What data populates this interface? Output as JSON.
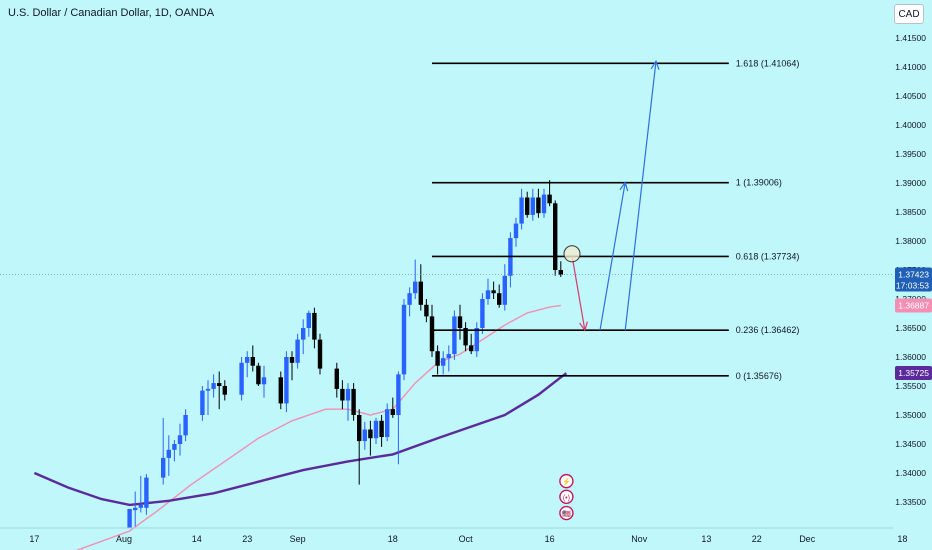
{
  "header": {
    "symbol_title": "U.S. Dollar / Canadian Dollar, 1D, OANDA",
    "currency_button": "CAD"
  },
  "colors": {
    "background": "#bff7fb",
    "up_candle": "#2962ff",
    "down_candle": "#000000",
    "ma_fast": "#f48fb1",
    "ma_slow": "#5b2a9b",
    "arrow_up": "#2f6fe0",
    "arrow_down": "#d63a6a"
  },
  "price_badges": {
    "last_price": "1.37423",
    "countdown": "17:03:53",
    "ma_fast_value": "1.36887",
    "ma_slow_value": "1.35725"
  },
  "chart_data": {
    "type": "candlestick",
    "title": "U.S. Dollar / Canadian Dollar, 1D, OANDA",
    "y_axis": {
      "ticks": [
        "1.41500",
        "1.41000",
        "1.40500",
        "1.40000",
        "1.39500",
        "1.39000",
        "1.38500",
        "1.38000",
        "1.37500",
        "1.37000",
        "1.36500",
        "1.36000",
        "1.35500",
        "1.35000",
        "1.34500",
        "1.34000",
        "1.33500"
      ],
      "range": [
        1.3305,
        1.4195
      ]
    },
    "x_axis": {
      "ticks": [
        "17",
        "Aug",
        "14",
        "23",
        "Sep",
        "18",
        "Oct",
        "16",
        "Nov",
        "13",
        "22",
        "Dec",
        "18"
      ],
      "tick_days": [
        -16,
        0,
        13,
        22,
        31,
        48,
        61,
        76,
        92,
        104,
        113,
        122,
        139
      ]
    },
    "candles": [
      {
        "d": 1,
        "o": 1.3305,
        "h": 1.3338,
        "l": 1.3305,
        "c": 1.3338
      },
      {
        "d": 2,
        "o": 1.3336,
        "h": 1.3368,
        "l": 1.3308,
        "c": 1.334
      },
      {
        "d": 3,
        "o": 1.334,
        "h": 1.3395,
        "l": 1.3332,
        "c": 1.3345
      },
      {
        "d": 4,
        "o": 1.334,
        "h": 1.3398,
        "l": 1.3328,
        "c": 1.3392
      },
      {
        "d": 7,
        "o": 1.3392,
        "h": 1.3495,
        "l": 1.338,
        "c": 1.3426
      },
      {
        "d": 8,
        "o": 1.3426,
        "h": 1.3465,
        "l": 1.3395,
        "c": 1.344
      },
      {
        "d": 9,
        "o": 1.344,
        "h": 1.3457,
        "l": 1.342,
        "c": 1.345
      },
      {
        "d": 10,
        "o": 1.345,
        "h": 1.3485,
        "l": 1.343,
        "c": 1.3465
      },
      {
        "d": 11,
        "o": 1.3465,
        "h": 1.351,
        "l": 1.3455,
        "c": 1.35
      },
      {
        "d": 14,
        "o": 1.35,
        "h": 1.355,
        "l": 1.349,
        "c": 1.3542
      },
      {
        "d": 15,
        "o": 1.3542,
        "h": 1.356,
        "l": 1.35,
        "c": 1.3545
      },
      {
        "d": 16,
        "o": 1.3545,
        "h": 1.357,
        "l": 1.353,
        "c": 1.3555
      },
      {
        "d": 17,
        "o": 1.3555,
        "h": 1.3575,
        "l": 1.351,
        "c": 1.355
      },
      {
        "d": 18,
        "o": 1.355,
        "h": 1.356,
        "l": 1.3525,
        "c": 1.3535
      },
      {
        "d": 21,
        "o": 1.3535,
        "h": 1.36,
        "l": 1.3525,
        "c": 1.359
      },
      {
        "d": 22,
        "o": 1.359,
        "h": 1.361,
        "l": 1.3565,
        "c": 1.36
      },
      {
        "d": 23,
        "o": 1.36,
        "h": 1.362,
        "l": 1.3575,
        "c": 1.3585
      },
      {
        "d": 24,
        "o": 1.3585,
        "h": 1.359,
        "l": 1.355,
        "c": 1.3553
      },
      {
        "d": 25,
        "o": 1.3553,
        "h": 1.3585,
        "l": 1.353,
        "c": 1.3565
      },
      {
        "d": 28,
        "o": 1.3565,
        "h": 1.3575,
        "l": 1.351,
        "c": 1.352
      },
      {
        "d": 29,
        "o": 1.352,
        "h": 1.361,
        "l": 1.3505,
        "c": 1.36
      },
      {
        "d": 30,
        "o": 1.36,
        "h": 1.361,
        "l": 1.356,
        "c": 1.359
      },
      {
        "d": 31,
        "o": 1.359,
        "h": 1.364,
        "l": 1.358,
        "c": 1.363
      },
      {
        "d": 32,
        "o": 1.363,
        "h": 1.3665,
        "l": 1.3605,
        "c": 1.365
      },
      {
        "d": 33,
        "o": 1.365,
        "h": 1.368,
        "l": 1.3635,
        "c": 1.3676
      },
      {
        "d": 34,
        "o": 1.3676,
        "h": 1.3685,
        "l": 1.3615,
        "c": 1.363
      },
      {
        "d": 35,
        "o": 1.363,
        "h": 1.364,
        "l": 1.357,
        "c": 1.358
      },
      {
        "d": 38,
        "o": 1.358,
        "h": 1.359,
        "l": 1.353,
        "c": 1.3545
      },
      {
        "d": 39,
        "o": 1.3545,
        "h": 1.356,
        "l": 1.351,
        "c": 1.3525
      },
      {
        "d": 40,
        "o": 1.3525,
        "h": 1.3555,
        "l": 1.349,
        "c": 1.3545
      },
      {
        "d": 41,
        "o": 1.3545,
        "h": 1.3555,
        "l": 1.349,
        "c": 1.35
      },
      {
        "d": 42,
        "o": 1.35,
        "h": 1.351,
        "l": 1.338,
        "c": 1.3455
      },
      {
        "d": 43,
        "o": 1.3455,
        "h": 1.3488,
        "l": 1.344,
        "c": 1.3475
      },
      {
        "d": 44,
        "o": 1.3475,
        "h": 1.349,
        "l": 1.343,
        "c": 1.346
      },
      {
        "d": 45,
        "o": 1.346,
        "h": 1.3495,
        "l": 1.345,
        "c": 1.349
      },
      {
        "d": 46,
        "o": 1.349,
        "h": 1.35,
        "l": 1.3445,
        "c": 1.3462
      },
      {
        "d": 47,
        "o": 1.3462,
        "h": 1.352,
        "l": 1.3455,
        "c": 1.351
      },
      {
        "d": 48,
        "o": 1.351,
        "h": 1.353,
        "l": 1.3495,
        "c": 1.35
      },
      {
        "d": 49,
        "o": 1.35,
        "h": 1.3575,
        "l": 1.3415,
        "c": 1.357
      },
      {
        "d": 50,
        "o": 1.357,
        "h": 1.37,
        "l": 1.356,
        "c": 1.369
      },
      {
        "d": 51,
        "o": 1.369,
        "h": 1.372,
        "l": 1.367,
        "c": 1.371
      },
      {
        "d": 52,
        "o": 1.371,
        "h": 1.3768,
        "l": 1.37,
        "c": 1.373
      },
      {
        "d": 53,
        "o": 1.373,
        "h": 1.376,
        "l": 1.368,
        "c": 1.369
      },
      {
        "d": 54,
        "o": 1.369,
        "h": 1.37,
        "l": 1.366,
        "c": 1.367
      },
      {
        "d": 55,
        "o": 1.367,
        "h": 1.369,
        "l": 1.36,
        "c": 1.361
      },
      {
        "d": 56,
        "o": 1.361,
        "h": 1.362,
        "l": 1.357,
        "c": 1.3585
      },
      {
        "d": 57,
        "o": 1.3585,
        "h": 1.361,
        "l": 1.357,
        "c": 1.3598
      },
      {
        "d": 58,
        "o": 1.3598,
        "h": 1.362,
        "l": 1.3575,
        "c": 1.3605
      },
      {
        "d": 59,
        "o": 1.3605,
        "h": 1.368,
        "l": 1.3595,
        "c": 1.367
      },
      {
        "d": 60,
        "o": 1.367,
        "h": 1.369,
        "l": 1.363,
        "c": 1.365
      },
      {
        "d": 61,
        "o": 1.365,
        "h": 1.366,
        "l": 1.361,
        "c": 1.362
      },
      {
        "d": 62,
        "o": 1.362,
        "h": 1.364,
        "l": 1.3605,
        "c": 1.361
      },
      {
        "d": 63,
        "o": 1.361,
        "h": 1.366,
        "l": 1.36,
        "c": 1.365
      },
      {
        "d": 64,
        "o": 1.365,
        "h": 1.371,
        "l": 1.364,
        "c": 1.37
      },
      {
        "d": 65,
        "o": 1.37,
        "h": 1.3735,
        "l": 1.369,
        "c": 1.3715
      },
      {
        "d": 66,
        "o": 1.3715,
        "h": 1.373,
        "l": 1.37,
        "c": 1.371
      },
      {
        "d": 67,
        "o": 1.371,
        "h": 1.3725,
        "l": 1.3685,
        "c": 1.369
      },
      {
        "d": 68,
        "o": 1.369,
        "h": 1.376,
        "l": 1.368,
        "c": 1.374
      },
      {
        "d": 69,
        "o": 1.374,
        "h": 1.3815,
        "l": 1.372,
        "c": 1.3805
      },
      {
        "d": 70,
        "o": 1.3805,
        "h": 1.384,
        "l": 1.379,
        "c": 1.383
      },
      {
        "d": 71,
        "o": 1.383,
        "h": 1.389,
        "l": 1.382,
        "c": 1.3875
      },
      {
        "d": 72,
        "o": 1.3875,
        "h": 1.3885,
        "l": 1.384,
        "c": 1.3845
      },
      {
        "d": 73,
        "o": 1.3845,
        "h": 1.389,
        "l": 1.3835,
        "c": 1.3875
      },
      {
        "d": 74,
        "o": 1.3875,
        "h": 1.389,
        "l": 1.384,
        "c": 1.3848
      },
      {
        "d": 75,
        "o": 1.3848,
        "h": 1.389,
        "l": 1.384,
        "c": 1.388
      },
      {
        "d": 76,
        "o": 1.388,
        "h": 1.3905,
        "l": 1.386,
        "c": 1.3865
      },
      {
        "d": 77,
        "o": 1.3865,
        "h": 1.387,
        "l": 1.374,
        "c": 1.375
      },
      {
        "d": 78,
        "o": 1.375,
        "h": 1.3765,
        "l": 1.3738,
        "c": 1.3742
      }
    ],
    "ma_fast": [
      [
        -16,
        1.324
      ],
      [
        1,
        1.33
      ],
      [
        6,
        1.3335
      ],
      [
        12,
        1.338
      ],
      [
        18,
        1.342
      ],
      [
        24,
        1.346
      ],
      [
        30,
        1.349
      ],
      [
        36,
        1.351
      ],
      [
        40,
        1.351
      ],
      [
        44,
        1.35
      ],
      [
        48,
        1.351
      ],
      [
        52,
        1.3555
      ],
      [
        56,
        1.359
      ],
      [
        60,
        1.3605
      ],
      [
        64,
        1.363
      ],
      [
        68,
        1.3655
      ],
      [
        72,
        1.3676
      ],
      [
        76,
        1.3686
      ],
      [
        78,
        1.3689
      ]
    ],
    "ma_slow": [
      [
        -16,
        1.34
      ],
      [
        -10,
        1.3375
      ],
      [
        -4,
        1.3355
      ],
      [
        1,
        1.3345
      ],
      [
        8,
        1.3352
      ],
      [
        16,
        1.3365
      ],
      [
        24,
        1.3385
      ],
      [
        32,
        1.3405
      ],
      [
        40,
        1.342
      ],
      [
        48,
        1.3432
      ],
      [
        56,
        1.346
      ],
      [
        62,
        1.348
      ],
      [
        68,
        1.35
      ],
      [
        74,
        1.3535
      ],
      [
        78,
        1.3565
      ],
      [
        79,
        1.3572
      ]
    ],
    "fibonacci": {
      "levels": [
        {
          "label": "1.618 (1.41064)",
          "price": 1.41064
        },
        {
          "label": "1 (1.39006)",
          "price": 1.39006
        },
        {
          "label": "0.618 (1.37734)",
          "price": 1.37734
        },
        {
          "label": "0.236 (1.36462)",
          "price": 1.36462
        },
        {
          "label": "0 (1.35676)",
          "price": 1.35676
        }
      ],
      "start_day": 55,
      "end_day": 108
    },
    "projection_arrows": [
      {
        "kind": "down",
        "from": [
          80,
          1.3775
        ],
        "to": [
          82.3,
          1.3646
        ]
      },
      {
        "kind": "up",
        "from": [
          85,
          1.3646
        ],
        "to": [
          89.5,
          1.3901
        ]
      },
      {
        "kind": "up",
        "from": [
          89.5,
          1.3646
        ],
        "to": [
          95,
          1.411
        ]
      }
    ],
    "highlight_circle": {
      "day": 80,
      "price": 1.3778
    },
    "event_icons": [
      {
        "glyph": "⚡",
        "day": 79,
        "price": 1.3386
      },
      {
        "glyph": "(•)",
        "day": 79,
        "price": 1.3359
      },
      {
        "glyph": "🇺🇸",
        "day": 79,
        "price": 1.3331
      }
    ]
  }
}
